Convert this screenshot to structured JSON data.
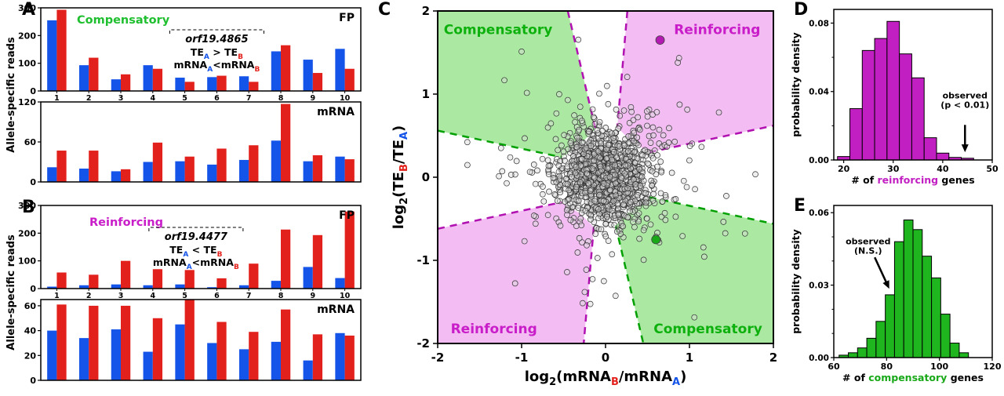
{
  "panels": {
    "A": {
      "letter": "A",
      "ylabel": "Allele-specific reads"
    },
    "B": {
      "letter": "B",
      "ylabel": "Allele-specific reads"
    },
    "C": {
      "letter": "C"
    },
    "D": {
      "letter": "D"
    },
    "E": {
      "letter": "E"
    }
  },
  "colors": {
    "allele_a_blue": "#1554e8",
    "allele_b_red": "#e3211c",
    "compensatory_green": "#1fbf2f",
    "reinforcing_magenta": "#c81dc8"
  },
  "chart_data": [
    {
      "id": "A_FP",
      "type": "bar",
      "corner_label": "FP",
      "group_label": {
        "text": "Compensatory",
        "color": "#1fbf2f"
      },
      "categories": [
        "1",
        "2",
        "3",
        "4",
        "5",
        "6",
        "7",
        "8",
        "9",
        "10"
      ],
      "series": [
        {
          "name": "allele A",
          "color": "#1554e8",
          "values": [
            255,
            93,
            42,
            93,
            48,
            50,
            53,
            143,
            113,
            152
          ]
        },
        {
          "name": "allele B",
          "color": "#e3211c",
          "values": [
            293,
            120,
            60,
            80,
            33,
            55,
            33,
            165,
            65,
            80
          ]
        }
      ],
      "ylim": [
        0,
        300
      ],
      "yticks": [
        0,
        100,
        200,
        300
      ],
      "show_categories": true,
      "annotation": {
        "gene": "orf19.4865",
        "line1_parts": [
          {
            "t": "TE"
          },
          {
            "t": "A",
            "sub": true,
            "c": "#1554e8"
          },
          {
            "t": " > "
          },
          {
            "t": "TE"
          },
          {
            "t": "B",
            "sub": true,
            "c": "#e3211c"
          }
        ],
        "line2_parts": [
          {
            "t": "mRNA"
          },
          {
            "t": "A",
            "sub": true,
            "c": "#1554e8"
          },
          {
            "t": "<"
          },
          {
            "t": "mRNA"
          },
          {
            "t": "B",
            "sub": true,
            "c": "#e3211c"
          }
        ]
      }
    },
    {
      "id": "A_mRNA",
      "type": "bar",
      "corner_label": "mRNA",
      "categories": [
        "1",
        "2",
        "3",
        "4",
        "5",
        "6",
        "7",
        "8",
        "9",
        "10"
      ],
      "series": [
        {
          "name": "allele A",
          "color": "#1554e8",
          "values": [
            22,
            20,
            16,
            30,
            31,
            26,
            33,
            62,
            31,
            38
          ]
        },
        {
          "name": "allele B",
          "color": "#e3211c",
          "values": [
            47,
            47,
            19,
            59,
            38,
            50,
            55,
            117,
            40,
            34
          ]
        }
      ],
      "ylim": [
        0,
        120
      ],
      "yticks": [
        0,
        60,
        120
      ],
      "show_categories": false
    },
    {
      "id": "B_FP",
      "type": "bar",
      "corner_label": "FP",
      "group_label": {
        "text": "Reinforcing",
        "color": "#c81dc8"
      },
      "categories": [
        "1",
        "2",
        "3",
        "4",
        "5",
        "6",
        "7",
        "8",
        "9",
        "10"
      ],
      "series": [
        {
          "name": "allele A",
          "color": "#1554e8",
          "values": [
            7,
            12,
            15,
            12,
            15,
            5,
            12,
            28,
            78,
            38
          ]
        },
        {
          "name": "allele B",
          "color": "#e3211c",
          "values": [
            58,
            50,
            100,
            70,
            67,
            37,
            90,
            213,
            193,
            278
          ]
        }
      ],
      "ylim": [
        0,
        300
      ],
      "yticks": [
        0,
        100,
        200,
        300
      ],
      "show_categories": true,
      "annotation": {
        "gene": "orf19.4477",
        "line1_parts": [
          {
            "t": "TE"
          },
          {
            "t": "A",
            "sub": true,
            "c": "#1554e8"
          },
          {
            "t": " < "
          },
          {
            "t": "TE"
          },
          {
            "t": "B",
            "sub": true,
            "c": "#e3211c"
          }
        ],
        "line2_parts": [
          {
            "t": "mRNA"
          },
          {
            "t": "A",
            "sub": true,
            "c": "#1554e8"
          },
          {
            "t": "<"
          },
          {
            "t": "mRNA"
          },
          {
            "t": "B",
            "sub": true,
            "c": "#e3211c"
          }
        ]
      }
    },
    {
      "id": "B_mRNA",
      "type": "bar",
      "corner_label": "mRNA",
      "categories": [
        "1",
        "2",
        "3",
        "4",
        "5",
        "6",
        "7",
        "8",
        "9",
        "10"
      ],
      "series": [
        {
          "name": "allele A",
          "color": "#1554e8",
          "values": [
            40,
            34,
            41,
            23,
            45,
            30,
            25,
            31,
            16,
            38
          ]
        },
        {
          "name": "allele B",
          "color": "#e3211c",
          "values": [
            61,
            60,
            60,
            50,
            65,
            47,
            39,
            57,
            37,
            36
          ]
        }
      ],
      "ylim": [
        0,
        65
      ],
      "yticks": [
        0,
        20,
        40,
        60
      ],
      "show_categories": false
    },
    {
      "id": "C",
      "type": "scatter",
      "xlim": [
        -2,
        2
      ],
      "ylim": [
        -2,
        2
      ],
      "xticks": [
        -2,
        -1,
        0,
        1,
        2
      ],
      "yticks": [
        -2,
        -1,
        0,
        1,
        2
      ],
      "xlabel_parts": [
        {
          "t": "log"
        },
        {
          "t": "2",
          "sub": true
        },
        {
          "t": "(mRNA"
        },
        {
          "t": "B",
          "sub": true,
          "c": "#e3211c"
        },
        {
          "t": "/mRNA"
        },
        {
          "t": "A",
          "sub": true,
          "c": "#1554e8"
        },
        {
          "t": ")"
        }
      ],
      "ylabel_parts": [
        {
          "t": "log"
        },
        {
          "t": "2",
          "sub": true
        },
        {
          "t": "(TE"
        },
        {
          "t": "B",
          "sub": true,
          "c": "#e3211c"
        },
        {
          "t": "/TE"
        },
        {
          "t": "A",
          "sub": true,
          "c": "#1554e8"
        },
        {
          "t": ")"
        }
      ],
      "regions": [
        {
          "name": "compensatory-top-left",
          "fill": "#abe9a3",
          "points": [
            [
              -2,
              2
            ],
            [
              -0.45,
              2
            ],
            [
              -0.12,
              0.58
            ],
            [
              -0.3,
              0.4
            ],
            [
              -0.52,
              0.24
            ],
            [
              -2,
              0.56
            ]
          ],
          "label": {
            "text": "Compensatory",
            "x": -1.28,
            "y": 1.78,
            "color": "#0db00d"
          }
        },
        {
          "name": "reinforcing-top-right",
          "fill": "#f3bdf3",
          "points": [
            [
              0.26,
              2
            ],
            [
              2,
              2
            ],
            [
              2,
              0.62
            ],
            [
              0.52,
              0.3
            ],
            [
              0.3,
              0.44
            ],
            [
              0.14,
              0.6
            ]
          ],
          "label": {
            "text": "Reinforcing",
            "x": 1.33,
            "y": 1.78,
            "color": "#c81dc8"
          }
        },
        {
          "name": "reinforcing-bottom-left",
          "fill": "#f3bdf3",
          "points": [
            [
              -2,
              -0.62
            ],
            [
              -0.52,
              -0.3
            ],
            [
              -0.3,
              -0.44
            ],
            [
              -0.14,
              -0.6
            ],
            [
              -0.26,
              -2
            ],
            [
              -2,
              -2
            ]
          ],
          "label": {
            "text": "Reinforcing",
            "x": -1.33,
            "y": -1.82,
            "color": "#c81dc8"
          }
        },
        {
          "name": "compensatory-bottom-right",
          "fill": "#abe9a3",
          "points": [
            [
              0.12,
              -0.58
            ],
            [
              0.3,
              -0.4
            ],
            [
              0.52,
              -0.24
            ],
            [
              2,
              -0.56
            ],
            [
              2,
              -2
            ],
            [
              0.45,
              -2
            ]
          ],
          "label": {
            "text": "Compensatory",
            "x": 1.22,
            "y": -1.82,
            "color": "#0db00d"
          }
        }
      ],
      "dashed_lines": [
        {
          "color": "#b011b0",
          "x1": -0.45,
          "y1": 2,
          "x2": -0.12,
          "y2": 0.58
        },
        {
          "color": "#b011b0",
          "x1": 0.26,
          "y1": 2,
          "x2": 0.14,
          "y2": 0.6
        },
        {
          "color": "#b011b0",
          "x1": 0.52,
          "y1": 0.3,
          "x2": 2,
          "y2": 0.62
        },
        {
          "color": "#b011b0",
          "x1": -2,
          "y1": -0.62,
          "x2": -0.52,
          "y2": -0.3
        },
        {
          "color": "#b011b0",
          "x1": -0.14,
          "y1": -0.6,
          "x2": -0.26,
          "y2": -2
        },
        {
          "color": "#00a000",
          "x1": -2,
          "y1": 0.56,
          "x2": -0.52,
          "y2": 0.24
        },
        {
          "color": "#00a000",
          "x1": 0.12,
          "y1": -0.58,
          "x2": 0.45,
          "y2": -2
        },
        {
          "color": "#00a000",
          "x1": 0.52,
          "y1": -0.24,
          "x2": 2,
          "y2": -0.56
        }
      ],
      "cloud": {
        "seed": 20177,
        "tiers": [
          {
            "n": 1150,
            "sigma": 0.27
          },
          {
            "n": 170,
            "sigma": 0.5
          },
          {
            "n": 45,
            "sigma": 0.85
          }
        ],
        "point_color": "#d9d9d9",
        "point_edge": "#2f2f2f"
      },
      "highlights": [
        {
          "x": 0.65,
          "y": 1.65,
          "color": "#b21ab2"
        },
        {
          "x": 0.6,
          "y": -0.75,
          "color": "#18a818"
        }
      ]
    },
    {
      "id": "D",
      "type": "histogram",
      "fill": "#c21fc2",
      "bin_start": 18.75,
      "bin_width": 2.5,
      "values": [
        0.002,
        0.03,
        0.064,
        0.071,
        0.081,
        0.062,
        0.048,
        0.013,
        0.004,
        0.0015,
        0.001
      ],
      "xlim": [
        18,
        50
      ],
      "xticks": [
        20,
        30,
        40,
        50
      ],
      "ylim": [
        0,
        0.088
      ],
      "yticks": [
        {
          "v": 0,
          "l": "0.00"
        },
        {
          "v": 0.04,
          "l": "0.04"
        },
        {
          "v": 0.08,
          "l": "0.08"
        }
      ],
      "minor_yticks": [
        0.02,
        0.06
      ],
      "ylabel": "probability density",
      "xlabel_parts": [
        {
          "t": "# of "
        },
        {
          "t": "reinforcing",
          "c": "#c21fc2"
        },
        {
          "t": " genes"
        }
      ],
      "annotation": {
        "lines": [
          "observed",
          "(p < 0.01)"
        ],
        "tx": 44.5,
        "ty": 0.036,
        "arrow": {
          "x1": 44.5,
          "y1": 0.0205,
          "x2": 44.5,
          "y2": 0.0045
        }
      }
    },
    {
      "id": "E",
      "type": "histogram",
      "fill": "#1eb51e",
      "bin_start": 62,
      "bin_width": 3.5,
      "values": [
        0.001,
        0.002,
        0.004,
        0.008,
        0.015,
        0.026,
        0.048,
        0.057,
        0.053,
        0.042,
        0.033,
        0.018,
        0.006,
        0.002
      ],
      "xlim": [
        60,
        120
      ],
      "xticks": [
        60,
        80,
        100,
        120
      ],
      "ylim": [
        0,
        0.063
      ],
      "yticks": [
        {
          "v": 0,
          "l": "0.00"
        },
        {
          "v": 0.03,
          "l": "0.03"
        },
        {
          "v": 0.06,
          "l": "0.06"
        }
      ],
      "minor_yticks": [
        0.01,
        0.02,
        0.04,
        0.05
      ],
      "ylabel": "probability density",
      "xlabel_parts": [
        {
          "t": "# of "
        },
        {
          "t": "compensatory",
          "c": "#18a818"
        },
        {
          "t": " genes"
        }
      ],
      "annotation": {
        "lines": [
          "observed",
          "(N.S.)"
        ],
        "tx": 73,
        "ty": 0.047,
        "arrow": {
          "x1": 75.5,
          "y1": 0.0415,
          "x2": 81,
          "y2": 0.0285
        }
      }
    }
  ]
}
